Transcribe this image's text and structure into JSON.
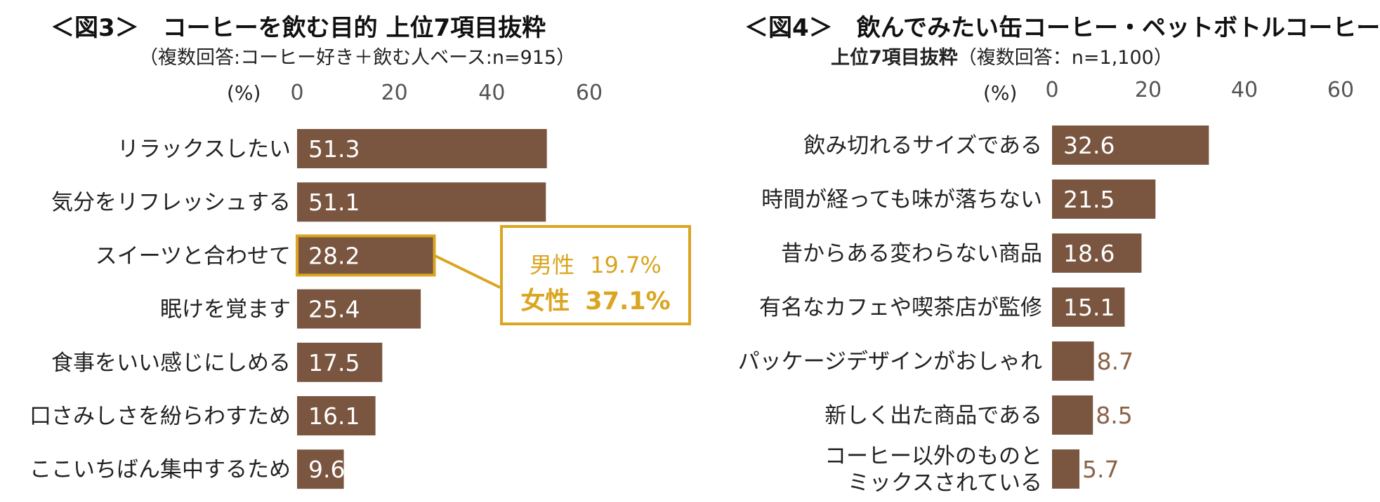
{
  "colors": {
    "bar": "#7A5641",
    "highlight": "#DAA520",
    "outside_label": "#8B6247"
  },
  "left": {
    "title": "＜図3＞　コーヒーを飲む目的 上位7項目抜粋",
    "subtitle": "（複数回答:コーヒー好き＋飲む人ベース:n=915）",
    "unit": "(%)",
    "callout": {
      "male_label": "男性",
      "male_value": "19.7%",
      "female_label": "女性",
      "female_value": "37.1%"
    }
  },
  "right": {
    "title": "＜図4＞　飲んでみたい缶コーヒー・ペットボトルコーヒー",
    "subtitle_bold": "上位7項目抜粋",
    "subtitle_rest": "（複数回答：n=1,100）",
    "unit": "(%)"
  },
  "chart_data": [
    {
      "type": "bar",
      "orientation": "horizontal",
      "title": "＜図3＞　コーヒーを飲む目的 上位7項目抜粋",
      "subtitle": "（複数回答:コーヒー好き＋飲む人ベース:n=915）",
      "xlabel": "(%)",
      "xlim": [
        0,
        60
      ],
      "xticks": [
        0,
        20,
        40,
        60
      ],
      "categories": [
        [
          "リラックスしたい"
        ],
        [
          "気分をリフレッシュする"
        ],
        [
          "スイーツと合わせて"
        ],
        [
          "眠けを覚ます"
        ],
        [
          "食事をいい感じにしめる"
        ],
        [
          "口さみしさを紛らわすため"
        ],
        [
          "ここいちばん集中するため"
        ]
      ],
      "values": [
        51.3,
        51.1,
        28.2,
        25.4,
        17.5,
        16.1,
        9.6
      ],
      "labels": [
        "51.3",
        "51.1",
        "28.2",
        "25.4",
        "17.5",
        "16.1",
        "9.6"
      ],
      "highlight_index": 2,
      "grid": false
    },
    {
      "type": "bar",
      "orientation": "horizontal",
      "title": "＜図4＞　飲んでみたい缶コーヒー・ペットボトルコーヒー",
      "subtitle": "上位7項目抜粋（複数回答：n=1,100）",
      "xlabel": "(%)",
      "xlim": [
        0,
        60
      ],
      "xticks": [
        0,
        20,
        40,
        60
      ],
      "categories": [
        [
          "飲み切れるサイズである"
        ],
        [
          "時間が経っても味が落ちない"
        ],
        [
          "昔からある変わらない商品"
        ],
        [
          "有名なカフェや喫茶店が監修"
        ],
        [
          "パッケージデザインがおしゃれ"
        ],
        [
          "新しく出た商品である"
        ],
        [
          "コーヒー以外のものと",
          "ミックスされている"
        ]
      ],
      "values": [
        32.6,
        21.5,
        18.6,
        15.1,
        8.7,
        8.5,
        5.7
      ],
      "labels": [
        "32.6",
        "21.5",
        "18.6",
        "15.1",
        "8.7",
        "8.5",
        "5.7"
      ],
      "grid": false
    }
  ]
}
